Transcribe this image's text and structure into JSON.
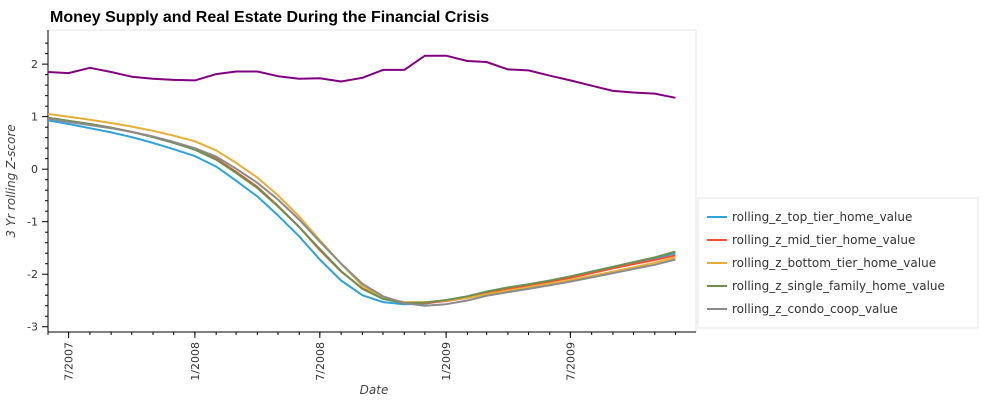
{
  "chart_data": {
    "type": "line",
    "title": "Money Supply and Real Estate During the Financial Crisis",
    "xlabel": "Date",
    "ylabel": "3 Yr rolling Z-score",
    "xlim": [
      "2007-06-01",
      "2009-12-31"
    ],
    "ylim": [
      -3.1,
      2.65
    ],
    "x_ticks": [
      {
        "date": "2007-07-01",
        "label": "7/2007"
      },
      {
        "date": "2008-01-01",
        "label": "1/2008"
      },
      {
        "date": "2008-07-01",
        "label": "7/2008"
      },
      {
        "date": "2009-01-01",
        "label": "1/2009"
      },
      {
        "date": "2009-07-01",
        "label": "7/2009"
      }
    ],
    "y_ticks": [
      2,
      1,
      0,
      -1,
      -2,
      -3
    ],
    "grid": false,
    "legend_position": "right",
    "x": [
      "2007-06-01",
      "2007-07-01",
      "2007-08-01",
      "2007-09-01",
      "2007-10-01",
      "2007-11-01",
      "2007-12-01",
      "2008-01-01",
      "2008-02-01",
      "2008-03-01",
      "2008-04-01",
      "2008-05-01",
      "2008-06-01",
      "2008-07-01",
      "2008-08-01",
      "2008-09-01",
      "2008-10-01",
      "2008-11-01",
      "2008-12-01",
      "2009-01-01",
      "2009-02-01",
      "2009-03-01",
      "2009-04-01",
      "2009-05-01",
      "2009-06-01",
      "2009-07-01",
      "2009-08-01",
      "2009-09-01",
      "2009-10-01",
      "2009-11-01",
      "2009-12-01"
    ],
    "series": [
      {
        "name": "",
        "color": "#800080",
        "in_legend": false,
        "values": [
          1.85,
          1.83,
          1.93,
          1.85,
          1.76,
          1.72,
          1.7,
          1.69,
          1.81,
          1.86,
          1.86,
          1.77,
          1.72,
          1.73,
          1.67,
          1.74,
          1.89,
          1.89,
          2.16,
          2.16,
          2.06,
          2.04,
          1.9,
          1.88,
          1.78,
          1.69,
          1.59,
          1.49,
          1.46,
          1.44,
          1.36
        ]
      },
      {
        "name": "rolling_z_top_tier_home_value",
        "color": "#30a2da",
        "in_legend": true,
        "values": [
          0.93,
          0.86,
          0.78,
          0.7,
          0.61,
          0.5,
          0.38,
          0.25,
          0.05,
          -0.22,
          -0.52,
          -0.88,
          -1.28,
          -1.72,
          -2.12,
          -2.4,
          -2.53,
          -2.57,
          -2.56,
          -2.5,
          -2.42,
          -2.33,
          -2.26,
          -2.2,
          -2.13,
          -2.05,
          -1.95,
          -1.86,
          -1.78,
          -1.7,
          -1.6
        ]
      },
      {
        "name": "rolling_z_mid_tier_home_value",
        "color": "#fc4f30",
        "in_legend": true,
        "values": [
          0.98,
          0.92,
          0.86,
          0.79,
          0.71,
          0.62,
          0.51,
          0.38,
          0.2,
          -0.05,
          -0.34,
          -0.7,
          -1.1,
          -1.54,
          -1.95,
          -2.27,
          -2.46,
          -2.55,
          -2.55,
          -2.51,
          -2.45,
          -2.36,
          -2.28,
          -2.21,
          -2.14,
          -2.07,
          -1.98,
          -1.89,
          -1.81,
          -1.73,
          -1.64
        ]
      },
      {
        "name": "rolling_z_bottom_tier_home_value",
        "color": "#e5ae38",
        "in_legend": true,
        "values": [
          1.05,
          1.0,
          0.94,
          0.88,
          0.81,
          0.73,
          0.64,
          0.53,
          0.36,
          0.12,
          -0.16,
          -0.5,
          -0.9,
          -1.35,
          -1.8,
          -2.22,
          -2.45,
          -2.53,
          -2.53,
          -2.5,
          -2.45,
          -2.38,
          -2.31,
          -2.25,
          -2.18,
          -2.11,
          -2.03,
          -1.95,
          -1.87,
          -1.78,
          -1.68
        ]
      },
      {
        "name": "rolling_z_single_family_home_value",
        "color": "#6d904f",
        "in_legend": true,
        "values": [
          0.98,
          0.92,
          0.86,
          0.79,
          0.71,
          0.61,
          0.5,
          0.37,
          0.18,
          -0.07,
          -0.36,
          -0.71,
          -1.1,
          -1.52,
          -1.94,
          -2.28,
          -2.47,
          -2.55,
          -2.54,
          -2.49,
          -2.42,
          -2.33,
          -2.25,
          -2.19,
          -2.12,
          -2.04,
          -1.95,
          -1.86,
          -1.77,
          -1.68,
          -1.57
        ]
      },
      {
        "name": "rolling_z_condo_coop_value",
        "color": "#8b8b8b",
        "in_legend": true,
        "values": [
          0.96,
          0.9,
          0.84,
          0.78,
          0.71,
          0.62,
          0.52,
          0.4,
          0.24,
          0.01,
          -0.26,
          -0.58,
          -0.96,
          -1.38,
          -1.8,
          -2.18,
          -2.42,
          -2.55,
          -2.6,
          -2.57,
          -2.5,
          -2.41,
          -2.34,
          -2.28,
          -2.21,
          -2.14,
          -2.06,
          -1.98,
          -1.9,
          -1.82,
          -1.72
        ]
      }
    ]
  }
}
